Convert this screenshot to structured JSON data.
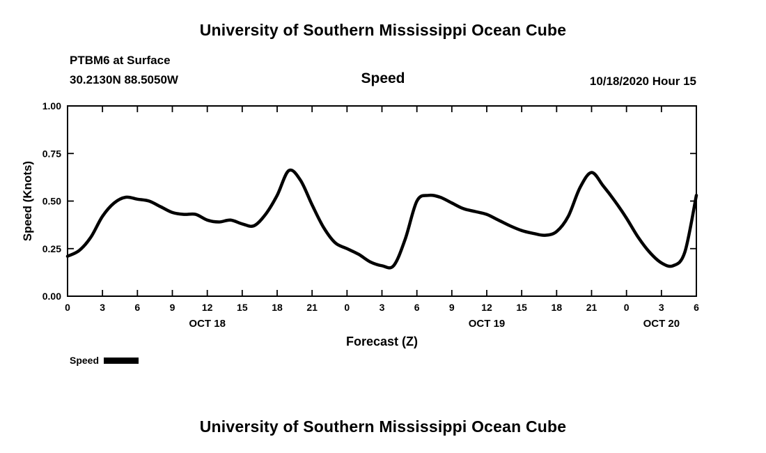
{
  "page": {
    "top_title": "University of Southern Mississippi Ocean Cube",
    "bottom_title": "University of Southern Mississippi Ocean Cube"
  },
  "header": {
    "station_line1": "PTBM6 at Surface",
    "station_line2": "30.2130N 88.5050W",
    "plot_title": "Speed",
    "datetime": "10/18/2020 Hour 15"
  },
  "chart_data": {
    "type": "line",
    "title": "Speed",
    "xlabel": "Forecast (Z)",
    "ylabel": "Speed (Knots)",
    "xlim": [
      0,
      54
    ],
    "ylim": [
      0,
      1
    ],
    "grid": false,
    "legend_position": "bottom-left",
    "line_color": "#000000",
    "line_width": 4.5,
    "x_hours": [
      0,
      1,
      2,
      3,
      4,
      5,
      6,
      7,
      8,
      9,
      10,
      11,
      12,
      13,
      14,
      15,
      16,
      17,
      18,
      19,
      20,
      21,
      22,
      23,
      24,
      25,
      26,
      27,
      28,
      29,
      30,
      31,
      32,
      33,
      34,
      35,
      36,
      37,
      38,
      39,
      40,
      41,
      42,
      43,
      44,
      45,
      46,
      47,
      48,
      49,
      50,
      51,
      52,
      53,
      54
    ],
    "values": [
      0.21,
      0.24,
      0.31,
      0.42,
      0.49,
      0.52,
      0.51,
      0.5,
      0.47,
      0.44,
      0.43,
      0.43,
      0.4,
      0.39,
      0.4,
      0.38,
      0.37,
      0.43,
      0.53,
      0.66,
      0.61,
      0.48,
      0.36,
      0.28,
      0.25,
      0.22,
      0.18,
      0.16,
      0.16,
      0.3,
      0.5,
      0.53,
      0.52,
      0.49,
      0.46,
      0.445,
      0.43,
      0.4,
      0.37,
      0.345,
      0.33,
      0.32,
      0.34,
      0.42,
      0.57,
      0.65,
      0.58,
      0.5,
      0.41,
      0.31,
      0.23,
      0.175,
      0.16,
      0.23,
      0.53
    ],
    "y_ticks": [
      {
        "value": 0.0,
        "label": "0.00"
      },
      {
        "value": 0.25,
        "label": "0.25"
      },
      {
        "value": 0.5,
        "label": "0.50"
      },
      {
        "value": 0.75,
        "label": "0.75"
      },
      {
        "value": 1.0,
        "label": "1.00"
      }
    ],
    "x_ticks": [
      {
        "hour": 0,
        "label": "0"
      },
      {
        "hour": 3,
        "label": "3"
      },
      {
        "hour": 6,
        "label": "6"
      },
      {
        "hour": 9,
        "label": "9"
      },
      {
        "hour": 12,
        "label": "12"
      },
      {
        "hour": 15,
        "label": "15"
      },
      {
        "hour": 18,
        "label": "18"
      },
      {
        "hour": 21,
        "label": "21"
      },
      {
        "hour": 24,
        "label": "0"
      },
      {
        "hour": 27,
        "label": "3"
      },
      {
        "hour": 30,
        "label": "6"
      },
      {
        "hour": 33,
        "label": "9"
      },
      {
        "hour": 36,
        "label": "12"
      },
      {
        "hour": 39,
        "label": "15"
      },
      {
        "hour": 42,
        "label": "18"
      },
      {
        "hour": 45,
        "label": "21"
      },
      {
        "hour": 48,
        "label": "0"
      },
      {
        "hour": 51,
        "label": "3"
      },
      {
        "hour": 54,
        "label": "6"
      }
    ],
    "day_labels": [
      {
        "hour": 12,
        "label": "OCT 18"
      },
      {
        "hour": 36,
        "label": "OCT 19"
      },
      {
        "hour": 51,
        "label": "OCT 20"
      }
    ],
    "legend": [
      {
        "label": "Speed",
        "color": "#000000"
      }
    ]
  }
}
